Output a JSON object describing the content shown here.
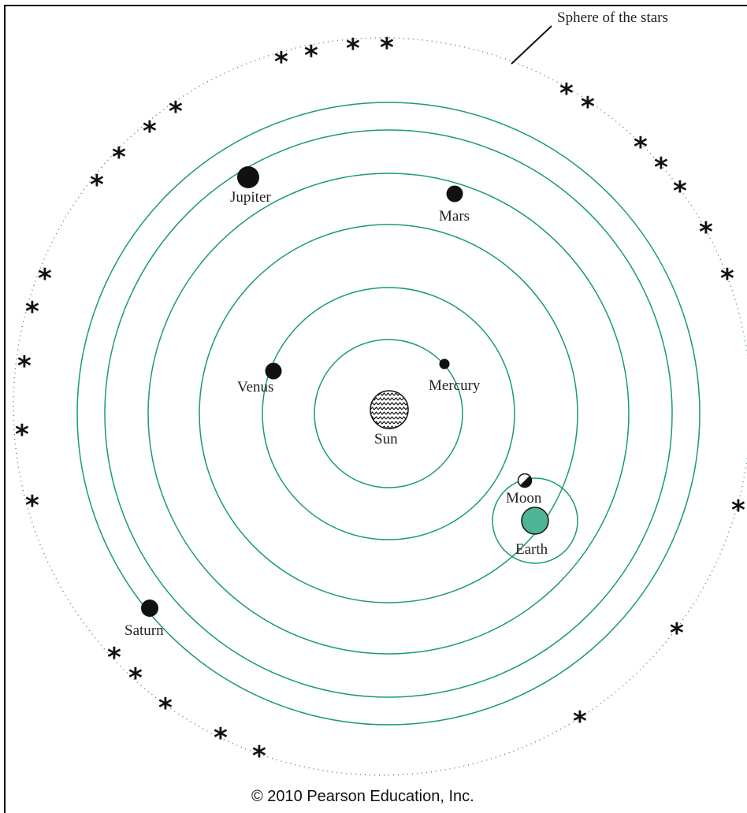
{
  "labels": {
    "sphere": "Sphere of the stars",
    "sun": "Sun",
    "mercury": "Mercury",
    "venus": "Venus",
    "earth": "Earth",
    "moon": "Moon",
    "mars": "Mars",
    "jupiter": "Jupiter",
    "saturn": "Saturn"
  },
  "credit": "© 2010 Pearson Education, Inc.",
  "colors": {
    "orbit": "#1a9a72",
    "earth_fill": "#4fb493",
    "planet": "#111111",
    "stars_dotted": "#2a8f6f"
  },
  "icons": {
    "star": "asterisk",
    "sun": "wavy-hatched-circle",
    "moon": "half-shaded-circle"
  }
}
